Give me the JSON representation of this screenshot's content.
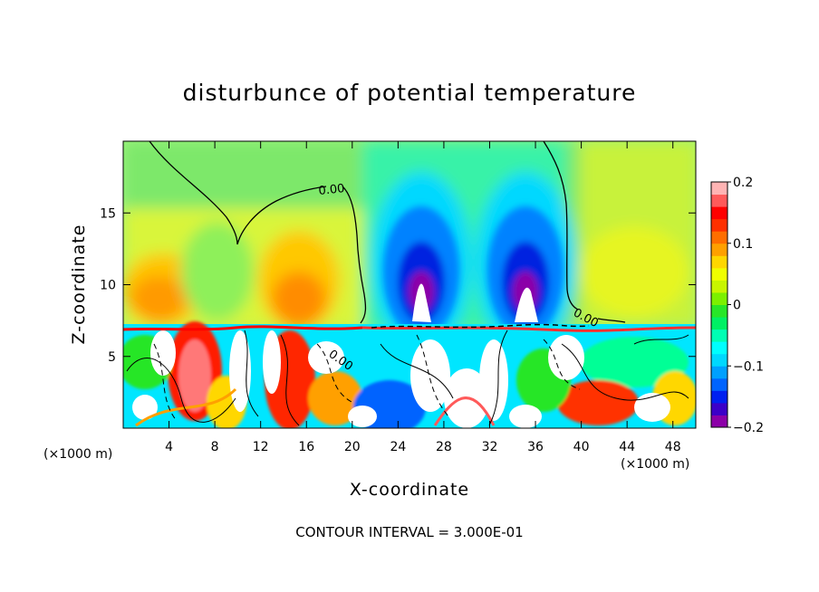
{
  "chart_data": {
    "type": "heatmap",
    "title": "disturbunce of potential temperature",
    "xlabel": "X-coordinate",
    "ylabel": "Z-coordinate",
    "x_unit": "(×1000 m)",
    "y_unit": "(×1000 m)",
    "xlim": [
      0,
      50
    ],
    "ylim": [
      0,
      20
    ],
    "x_ticks": [
      4,
      8,
      12,
      16,
      20,
      24,
      28,
      32,
      36,
      40,
      44,
      48
    ],
    "y_ticks": [
      5,
      10,
      15
    ],
    "colorbar": {
      "range": [
        -0.2,
        0.2
      ],
      "ticks": [
        0.2,
        0.1,
        0,
        -0.1,
        -0.2
      ],
      "tick_labels": [
        "0.2",
        "0.1",
        "0",
        "−0.1",
        "−0.2"
      ],
      "colors": [
        "#8c00a8",
        "#3c00c8",
        "#0020f0",
        "#0064ff",
        "#00a0ff",
        "#00d8ff",
        "#00ffff",
        "#00ffb4",
        "#00f064",
        "#28e628",
        "#7cf000",
        "#c8f500",
        "#f0ff00",
        "#ffd700",
        "#ffa000",
        "#ff6e00",
        "#ff3000",
        "#ff0000",
        "#ff5a5a",
        "#ffb4b4"
      ]
    },
    "contour_labels": [
      "0.00",
      "0.00",
      "0.00"
    ],
    "note": "CONTOUR INTERVAL = 3.000E-01"
  }
}
